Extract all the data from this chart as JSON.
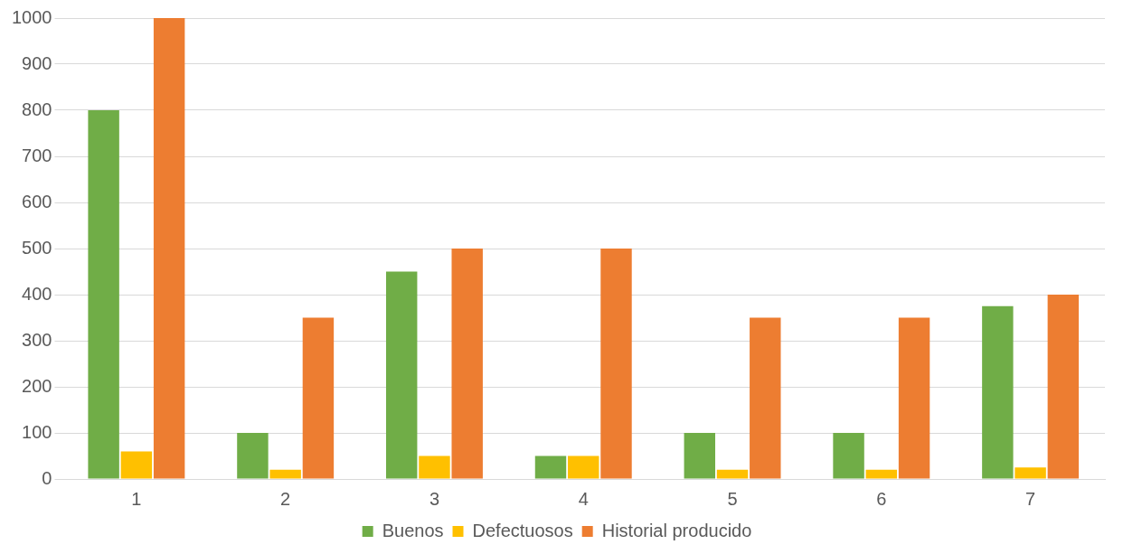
{
  "chart_data": {
    "type": "bar",
    "categories": [
      "1",
      "2",
      "3",
      "4",
      "5",
      "6",
      "7"
    ],
    "series": [
      {
        "name": "Buenos",
        "color": "#70ad47",
        "values": [
          800,
          100,
          450,
          50,
          100,
          100,
          375
        ]
      },
      {
        "name": "Defectuosos",
        "color": "#ffc000",
        "values": [
          60,
          20,
          50,
          50,
          20,
          20,
          25
        ]
      },
      {
        "name": "Historial producido",
        "color": "#ed7d31",
        "values": [
          1000,
          350,
          500,
          500,
          350,
          350,
          400
        ]
      }
    ],
    "ylim": [
      0,
      1000
    ],
    "yticks": [
      0,
      100,
      200,
      300,
      400,
      500,
      600,
      700,
      800,
      900,
      1000
    ],
    "grid": "y",
    "legend": "bottom"
  }
}
